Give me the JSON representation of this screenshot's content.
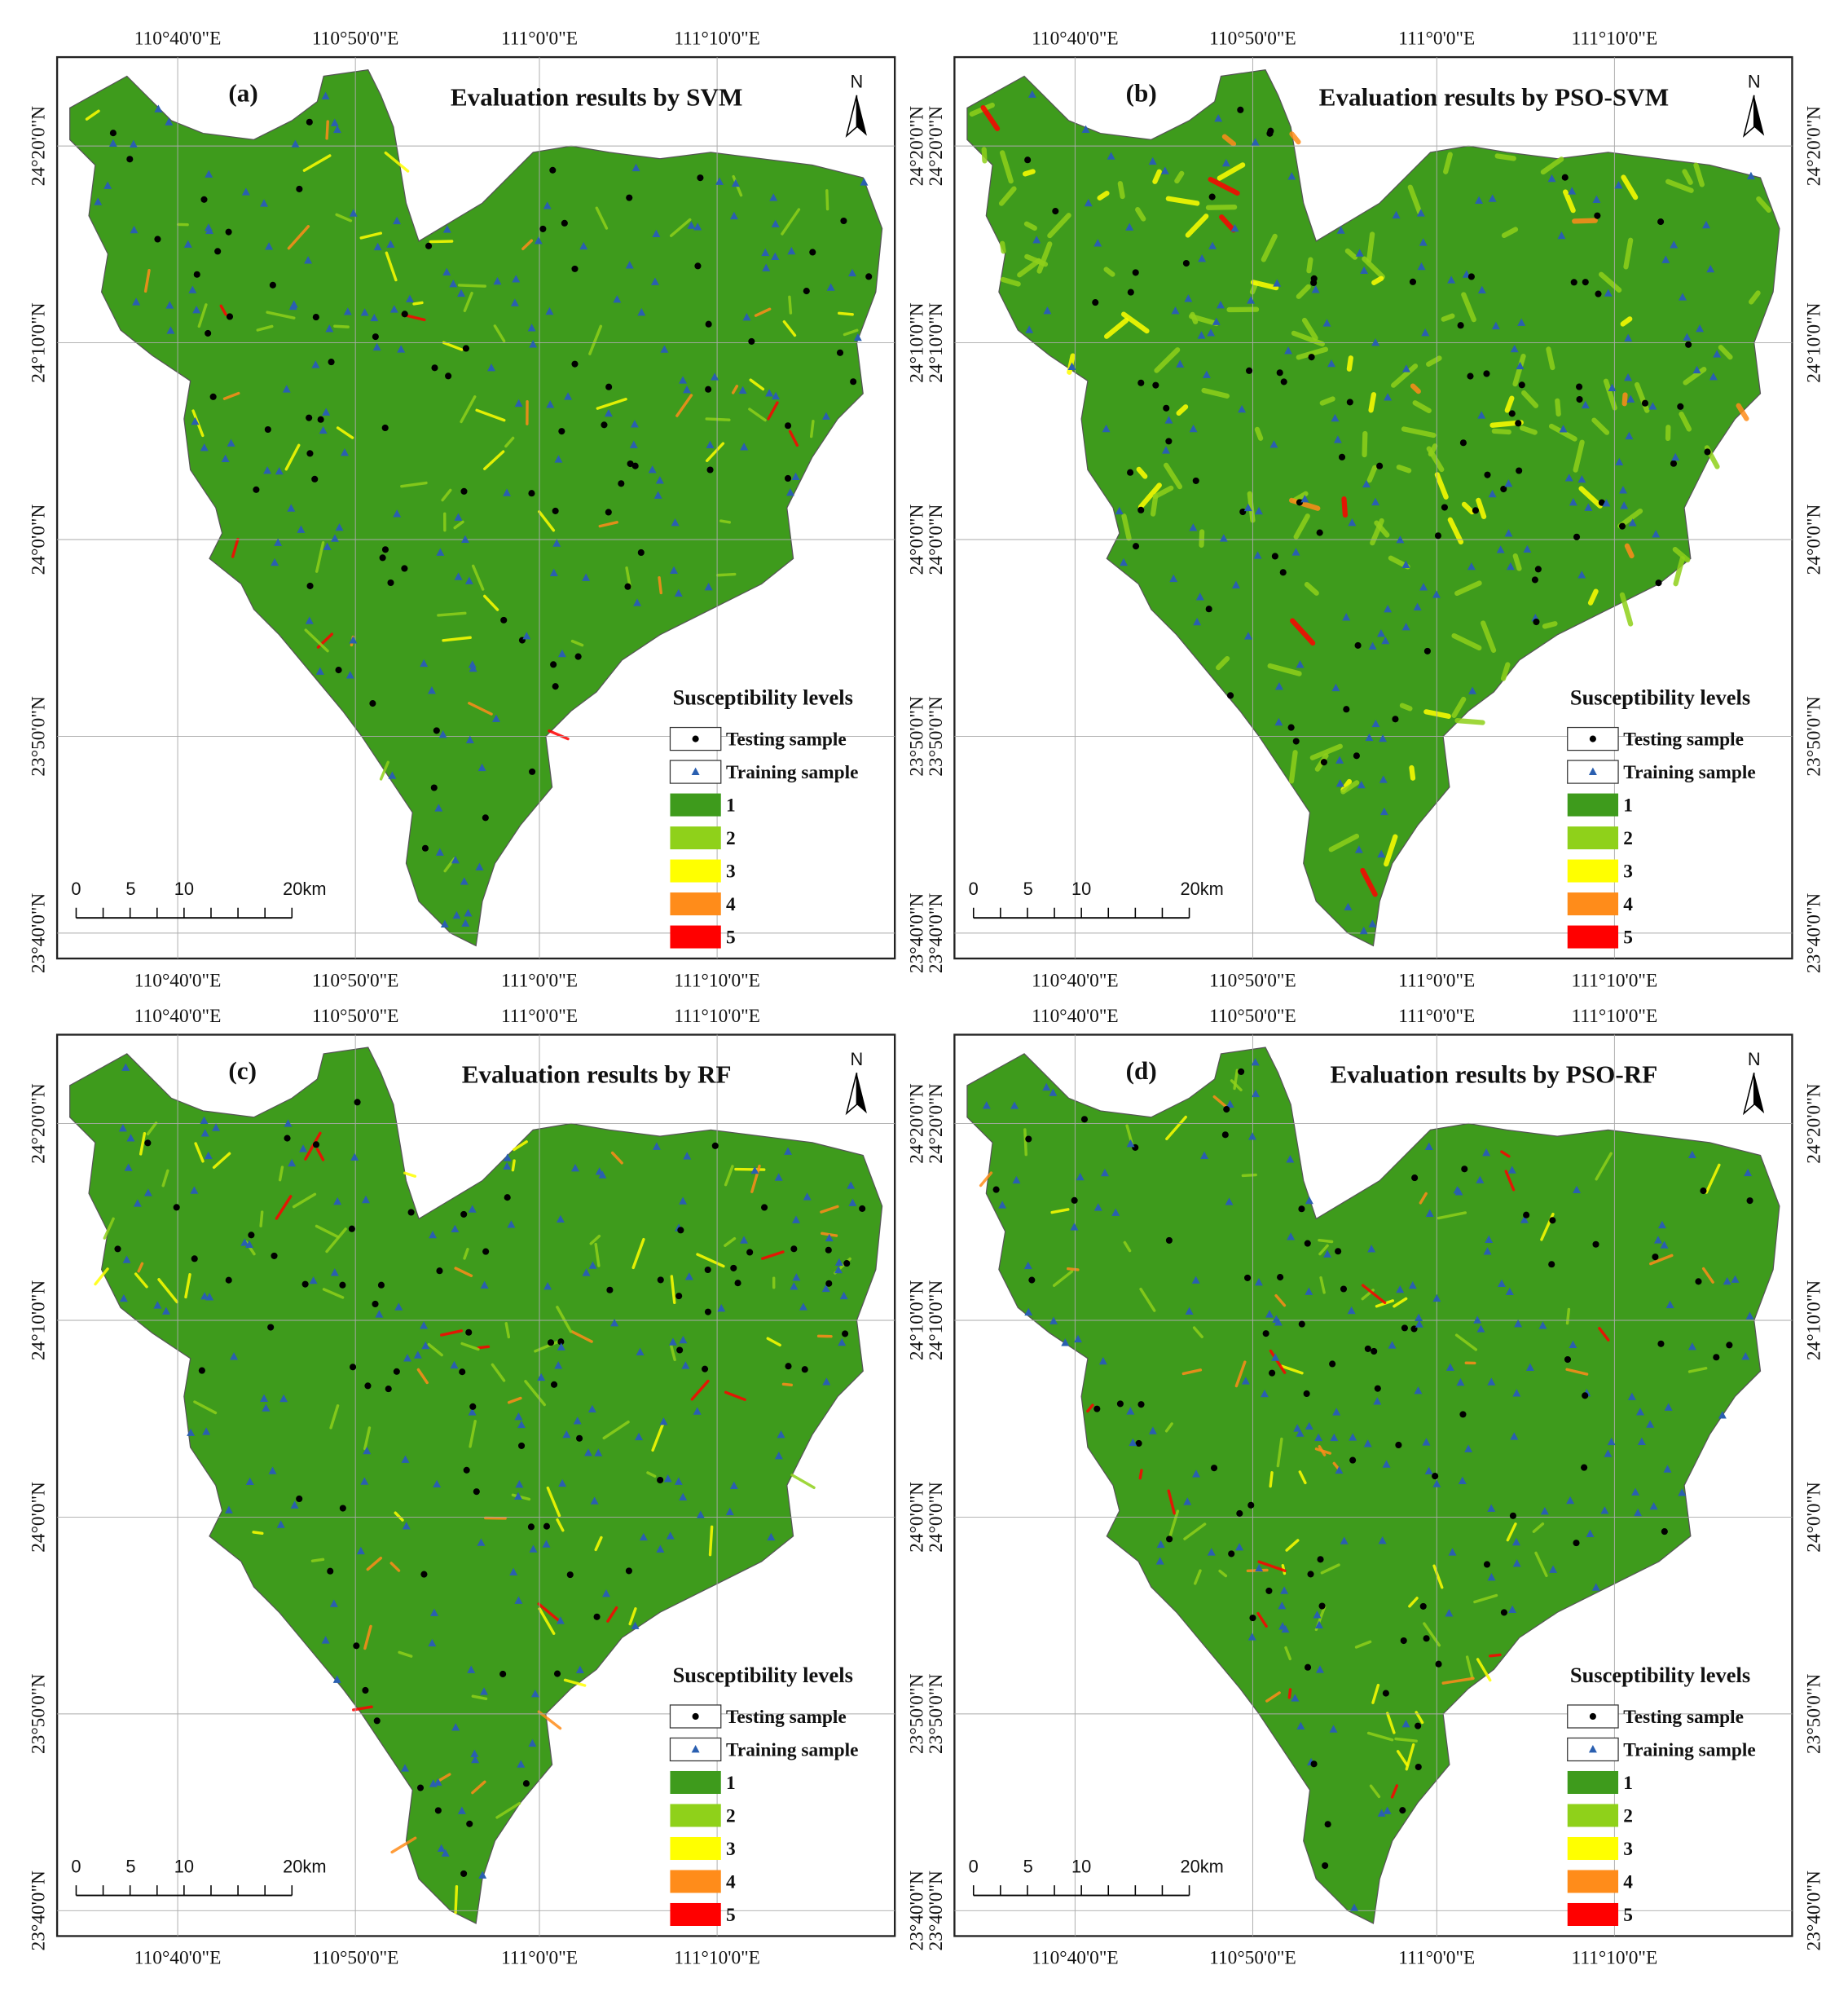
{
  "axes": {
    "lon_labels": [
      "110°40'0\"E",
      "110°50'0\"E",
      "111°0'0\"E",
      "111°10'0\"E"
    ],
    "lat_labels": [
      "24°20'0\"N",
      "24°10'0\"N",
      "24°0'0\"N",
      "23°50'0\"N",
      "23°40'0\"N"
    ]
  },
  "legend": {
    "title": "Susceptibility levels",
    "samples": [
      {
        "label": "Testing sample",
        "color": "#000000"
      },
      {
        "label": "Training sample",
        "color": "#2a5fb0"
      }
    ],
    "levels": [
      {
        "label": "1",
        "color": "#3e9b1c"
      },
      {
        "label": "2",
        "color": "#8fd11a"
      },
      {
        "label": "3",
        "color": "#ffff00"
      },
      {
        "label": "4",
        "color": "#ff8c1a"
      },
      {
        "label": "5",
        "color": "#ff0000"
      }
    ]
  },
  "scale_bar": [
    "0",
    "5",
    "10",
    "20km"
  ],
  "north": "N",
  "panels": [
    {
      "label": "(a)",
      "title": "Evaluation results by SVM"
    },
    {
      "label": "(b)",
      "title": "Evaluation results by PSO-SVM"
    },
    {
      "label": "(c)",
      "title": "Evaluation results by RF"
    },
    {
      "label": "(d)",
      "title": "Evaluation results by PSO-RF"
    }
  ]
}
